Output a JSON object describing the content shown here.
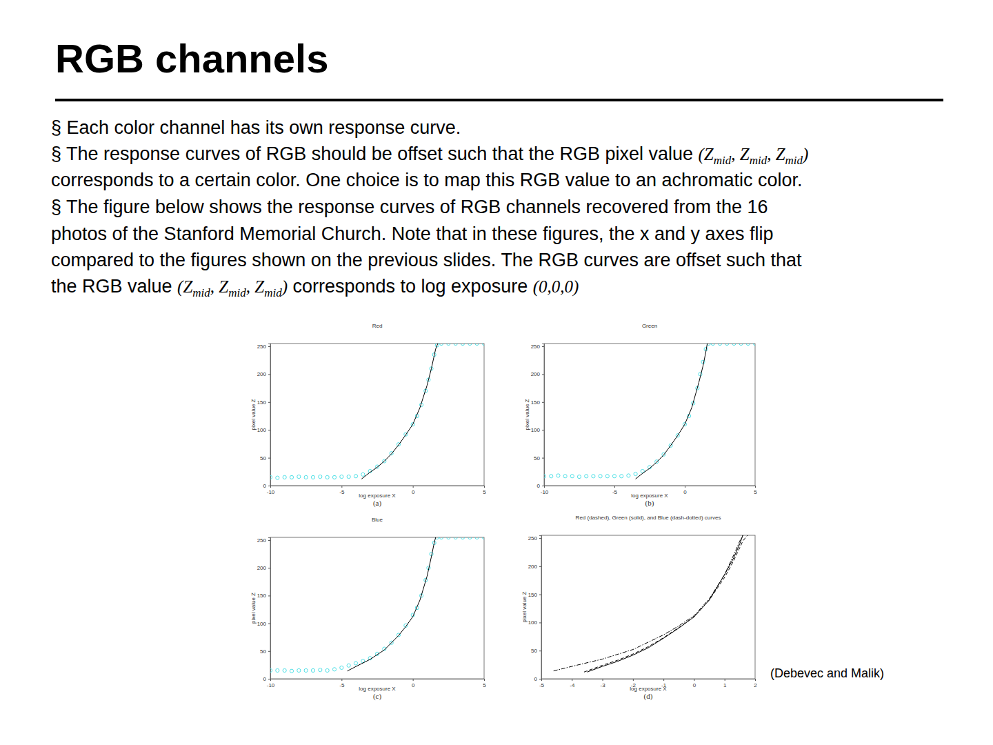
{
  "slide": {
    "title": "RGB channels",
    "lines": [
      [
        {
          "text": "§ Each color channel has its own response curve."
        }
      ],
      [
        {
          "text": "§ The response curves of RGB should be offset such that the RGB pixel value "
        },
        {
          "text": "(",
          "math": true
        },
        {
          "text": "Z",
          "sub": "mid",
          "math": true
        },
        {
          "text": ", ",
          "math": true
        },
        {
          "text": "Z",
          "sub": "mid",
          "math": true
        },
        {
          "text": ", ",
          "math": true
        },
        {
          "text": "Z",
          "sub": "mid",
          "math": true
        },
        {
          "text": ")",
          "math": true
        }
      ],
      [
        {
          "text": "corresponds to a certain color. One choice is to map this RGB value to an achromatic color."
        }
      ],
      [
        {
          "text": "§ The figure below shows the response curves of RGB channels recovered from the 16"
        }
      ],
      [
        {
          "text": "photos of the Stanford Memorial Church. Note that in these figures, the x and y axes flip"
        }
      ],
      [
        {
          "text": "compared to the figures shown on the previous slides. The RGB curves are offset such that"
        }
      ],
      [
        {
          "text": "the RGB value "
        },
        {
          "text": "(",
          "math": true
        },
        {
          "text": "Z",
          "sub": "mid",
          "math": true
        },
        {
          "text": ", ",
          "math": true
        },
        {
          "text": "Z",
          "sub": "mid",
          "math": true
        },
        {
          "text": ", ",
          "math": true
        },
        {
          "text": "Z",
          "sub": "mid",
          "math": true
        },
        {
          "text": ")",
          "math": true
        },
        {
          "text": " corresponds to log exposure "
        },
        {
          "text": "(0,0,0)",
          "math": true
        }
      ]
    ],
    "citation": "(Debevec and Malik)"
  },
  "chart_data": [
    {
      "type": "scatter",
      "title": "Red",
      "x_label": "log exposure X",
      "y_label": "pixel value Z",
      "caption": "(a)",
      "xlim": [
        -10,
        5
      ],
      "xticks": [
        -10,
        -5,
        0,
        5
      ],
      "ylim": [
        0,
        255
      ],
      "yticks": [
        0,
        50,
        100,
        150,
        200,
        250
      ],
      "series": [
        {
          "type": "scatter",
          "color": "#3fdde3",
          "marker": "circle",
          "x": [
            -10,
            -9.5,
            -9,
            -8.5,
            -8,
            -7.5,
            -7,
            -6.5,
            -6,
            -5.5,
            -5,
            -4.5,
            -4,
            -3.5,
            -3,
            -2.5,
            -2,
            -1.5,
            -1,
            -0.5,
            0,
            0.3,
            0.6,
            0.9,
            1.1,
            1.3,
            1.5,
            1.7,
            2,
            2.5,
            3,
            3.5,
            4,
            4.5,
            5
          ],
          "values": [
            15,
            14,
            15,
            15,
            16,
            15,
            15,
            16,
            15,
            15,
            16,
            16,
            17,
            20,
            26,
            34,
            44,
            58,
            74,
            92,
            110,
            125,
            145,
            170,
            190,
            210,
            235,
            252,
            255,
            255,
            255,
            255,
            255,
            255,
            255
          ]
        },
        {
          "type": "line",
          "color": "#000000",
          "line_style": "solid",
          "x": [
            -3.6,
            -3,
            -2.5,
            -2,
            -1.5,
            -1,
            -0.5,
            0,
            0.5,
            1,
            1.3,
            1.6,
            1.75
          ],
          "values": [
            12,
            24,
            33,
            44,
            57,
            73,
            91,
            110,
            140,
            180,
            210,
            245,
            255
          ]
        }
      ]
    },
    {
      "type": "scatter",
      "title": "Green",
      "x_label": "log exposure X",
      "y_label": "pixel value Z",
      "caption": "(b)",
      "xlim": [
        -10,
        5
      ],
      "xticks": [
        -10,
        -5,
        0,
        5
      ],
      "ylim": [
        0,
        255
      ],
      "yticks": [
        0,
        50,
        100,
        150,
        200,
        250
      ],
      "series": [
        {
          "type": "scatter",
          "color": "#3fdde3",
          "marker": "circle",
          "x": [
            -10,
            -9.5,
            -9,
            -8.5,
            -8,
            -7.5,
            -7,
            -6.5,
            -6,
            -5.5,
            -5,
            -4.5,
            -4,
            -3.5,
            -3,
            -2.5,
            -2,
            -1.5,
            -1,
            -0.5,
            0,
            0.3,
            0.6,
            0.9,
            1.1,
            1.3,
            1.5,
            1.7,
            2,
            2.5,
            3,
            3.5,
            4,
            4.5,
            5
          ],
          "values": [
            17,
            17,
            18,
            17,
            17,
            16,
            17,
            17,
            17,
            17,
            17,
            17,
            18,
            21,
            26,
            33,
            43,
            56,
            72,
            90,
            110,
            125,
            148,
            175,
            200,
            222,
            245,
            255,
            255,
            255,
            255,
            255,
            255,
            255,
            255
          ]
        },
        {
          "type": "line",
          "color": "#000000",
          "line_style": "solid",
          "x": [
            -3.5,
            -3,
            -2.5,
            -2,
            -1.5,
            -1,
            -0.5,
            0,
            0.5,
            1,
            1.3,
            1.5,
            1.6
          ],
          "values": [
            12,
            22,
            31,
            42,
            55,
            72,
            90,
            110,
            140,
            185,
            215,
            240,
            255
          ]
        }
      ]
    },
    {
      "type": "scatter",
      "title": "Blue",
      "x_label": "log exposure X",
      "y_label": "pixel value Z",
      "caption": "(c)",
      "xlim": [
        -10,
        5
      ],
      "xticks": [
        -10,
        -5,
        0,
        5
      ],
      "ylim": [
        0,
        255
      ],
      "yticks": [
        0,
        50,
        100,
        150,
        200,
        250
      ],
      "series": [
        {
          "type": "scatter",
          "color": "#3fdde3",
          "marker": "circle",
          "x": [
            -10,
            -9.5,
            -9,
            -8.5,
            -8,
            -7.5,
            -7,
            -6.5,
            -6,
            -5.5,
            -5,
            -4.5,
            -4,
            -3.5,
            -3,
            -2.5,
            -2,
            -1.5,
            -1,
            -0.5,
            0,
            0.3,
            0.6,
            0.9,
            1.1,
            1.3,
            1.5,
            1.7,
            2,
            2.5,
            3,
            3.5,
            4,
            4.5,
            5
          ],
          "values": [
            15,
            15,
            15,
            14,
            15,
            15,
            15,
            16,
            15,
            17,
            20,
            24,
            28,
            32,
            37,
            45,
            54,
            65,
            79,
            96,
            115,
            128,
            150,
            178,
            200,
            225,
            245,
            255,
            255,
            255,
            255,
            255,
            255,
            255,
            255
          ]
        },
        {
          "type": "line",
          "color": "#000000",
          "line_style": "solid",
          "x": [
            -4.6,
            -4,
            -3,
            -2,
            -1,
            -0.5,
            0,
            0.5,
            1,
            1.3,
            1.5,
            1.6
          ],
          "values": [
            14,
            22,
            35,
            52,
            78,
            94,
            112,
            142,
            185,
            220,
            245,
            255
          ]
        }
      ]
    },
    {
      "type": "line",
      "title": "Red (dashed), Green (solid), and Blue (dash-dotted) curves",
      "x_label": "log exposure X",
      "y_label": "pixel value Z",
      "caption": "(d)",
      "xlim": [
        -5,
        2
      ],
      "xticks": [
        -5,
        -4,
        -3,
        -2,
        -1,
        0,
        1,
        2
      ],
      "ylim": [
        0,
        255
      ],
      "yticks": [
        0,
        50,
        100,
        150,
        200,
        250
      ],
      "series": [
        {
          "type": "line",
          "color": "#000000",
          "line_style": "dashed",
          "x": [
            -3.6,
            -3,
            -2.5,
            -2,
            -1.5,
            -1,
            -0.5,
            0,
            0.5,
            1,
            1.3,
            1.6,
            1.75
          ],
          "values": [
            12,
            24,
            33,
            44,
            57,
            73,
            91,
            110,
            140,
            180,
            210,
            245,
            255
          ]
        },
        {
          "type": "line",
          "color": "#000000",
          "line_style": "solid",
          "x": [
            -3.5,
            -3,
            -2.5,
            -2,
            -1.5,
            -1,
            -0.5,
            0,
            0.5,
            1,
            1.3,
            1.5,
            1.6
          ],
          "values": [
            12,
            22,
            31,
            42,
            55,
            72,
            90,
            110,
            140,
            185,
            215,
            240,
            255
          ]
        },
        {
          "type": "line",
          "color": "#000000",
          "line_style": "dashdot",
          "x": [
            -4.6,
            -4,
            -3,
            -2,
            -1,
            -0.5,
            0,
            0.5,
            1,
            1.3,
            1.5,
            1.6
          ],
          "values": [
            14,
            22,
            35,
            52,
            78,
            94,
            112,
            142,
            185,
            220,
            245,
            255
          ]
        }
      ]
    }
  ]
}
